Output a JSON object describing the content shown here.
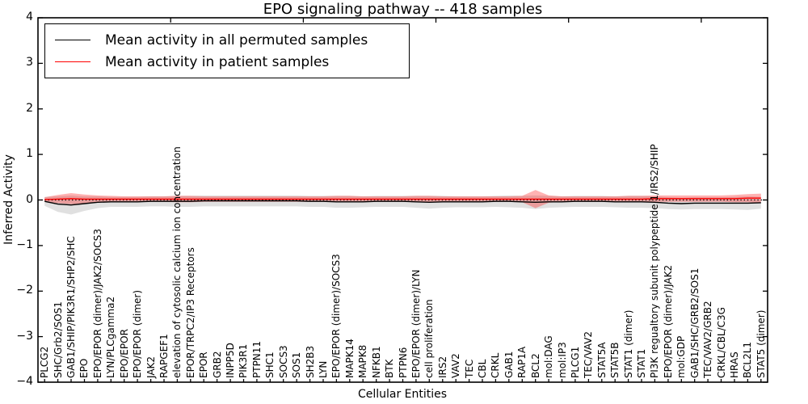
{
  "legend": {
    "items": [
      {
        "label": "Mean activity in all permuted samples",
        "color": "#000000"
      },
      {
        "label": "Mean activity in patient samples",
        "color": "#ff0000"
      }
    ]
  },
  "chart_data": {
    "type": "line",
    "title": "EPO signaling pathway -- 418 samples",
    "xlabel": "Cellular Entities",
    "ylabel": "Inferred Activity",
    "ylim": [
      -4,
      4
    ],
    "ytick_labels": [
      "4",
      "3",
      "2",
      "1",
      "0",
      "−1",
      "−2",
      "−3",
      "−4"
    ],
    "grid": false,
    "legend_position": "upper left",
    "zero_line": {
      "style": "dotted",
      "color": "#000000",
      "y": 0
    },
    "categories": [
      "PLCG2",
      "SHC/Grb2/SOS1",
      "GAB1/SHIP/PIK3R1/SHP2/SHC",
      "EPO",
      "EPO/EPOR (dimer)/JAK2/SOCS3",
      "LYN/PLCgamma2",
      "EPO/EPOR",
      "EPO/EPOR (dimer)",
      "JAK2",
      "RAPGEF1",
      "elevation of cytosolic calcium ion concentration",
      "EPOR/TRPC2/IP3 Receptors",
      "EPOR",
      "GRB2",
      "INPP5D",
      "PIK3R1",
      "PTPN11",
      "SHC1",
      "SOCS3",
      "SOS1",
      "SH2B3",
      "LYN",
      "EPO/EPOR (dimer)/SOCS3",
      "MAPK14",
      "MAPK8",
      "NFKB1",
      "BTK",
      "PTPN6",
      "EPO/EPOR (dimer)/LYN",
      "cell proliferation",
      "IRS2",
      "VAV2",
      "TEC",
      "CBL",
      "CRKL",
      "GAB1",
      "RAP1A",
      "BCL2",
      "mol:DAG",
      "mol:IP3",
      "PLCG1",
      "TEC/VAV2",
      "STAT5A",
      "STAT5B",
      "STAT1 (dimer)",
      "STAT1",
      "PI3K regualtory subunit polypeptide 1/IRS2/SHIP",
      "EPO/EPOR (dimer)/JAK2",
      "mol:GDP",
      "GAB1/SHC/GRB2/SOS1",
      "TEC/VAV2/GRB2",
      "CRKL/CBL/C3G",
      "HRAS",
      "BCL2L1",
      "STAT5 (dimer)"
    ],
    "series": [
      {
        "name": "Mean activity in all permuted samples",
        "color": "#000000",
        "band_color": "#000000",
        "band_opacity": 0.12,
        "values": [
          -0.03,
          -0.09,
          -0.11,
          -0.08,
          -0.05,
          -0.04,
          -0.04,
          -0.04,
          -0.03,
          -0.03,
          -0.03,
          -0.03,
          -0.02,
          -0.02,
          -0.02,
          -0.02,
          -0.02,
          -0.02,
          -0.02,
          -0.02,
          -0.03,
          -0.03,
          -0.04,
          -0.04,
          -0.04,
          -0.03,
          -0.03,
          -0.03,
          -0.04,
          -0.05,
          -0.04,
          -0.04,
          -0.04,
          -0.04,
          -0.03,
          -0.03,
          -0.04,
          -0.05,
          -0.04,
          -0.04,
          -0.03,
          -0.03,
          -0.03,
          -0.04,
          -0.04,
          -0.04,
          -0.05,
          -0.07,
          -0.08,
          -0.07,
          -0.07,
          -0.07,
          -0.07,
          -0.07,
          -0.06
        ],
        "std": [
          0.1,
          0.17,
          0.21,
          0.16,
          0.13,
          0.11,
          0.11,
          0.11,
          0.11,
          0.11,
          0.12,
          0.12,
          0.12,
          0.12,
          0.12,
          0.12,
          0.12,
          0.12,
          0.12,
          0.12,
          0.12,
          0.12,
          0.13,
          0.13,
          0.12,
          0.12,
          0.12,
          0.12,
          0.13,
          0.14,
          0.13,
          0.12,
          0.12,
          0.12,
          0.12,
          0.13,
          0.13,
          0.15,
          0.13,
          0.12,
          0.12,
          0.12,
          0.12,
          0.12,
          0.13,
          0.13,
          0.13,
          0.13,
          0.13,
          0.13,
          0.13,
          0.13,
          0.14,
          0.15,
          0.13
        ]
      },
      {
        "name": "Mean activity in patient samples",
        "color": "#ff0000",
        "band_color": "#ff0000",
        "band_opacity": 0.3,
        "values": [
          0.01,
          0.02,
          0.03,
          0.02,
          0.02,
          0.02,
          0.02,
          0.02,
          0.02,
          0.02,
          0.02,
          0.02,
          0.02,
          0.02,
          0.02,
          0.02,
          0.02,
          0.02,
          0.02,
          0.02,
          0.02,
          0.02,
          0.02,
          0.02,
          0.02,
          0.02,
          0.02,
          0.02,
          0.02,
          0.02,
          0.02,
          0.02,
          0.02,
          0.02,
          0.02,
          0.02,
          0.02,
          0.02,
          0.02,
          0.02,
          0.02,
          0.02,
          0.02,
          0.02,
          0.02,
          0.02,
          0.03,
          0.03,
          0.03,
          0.03,
          0.03,
          0.03,
          0.03,
          0.04,
          0.04
        ],
        "std": [
          0.05,
          0.09,
          0.12,
          0.1,
          0.08,
          0.07,
          0.06,
          0.06,
          0.06,
          0.06,
          0.07,
          0.07,
          0.06,
          0.06,
          0.06,
          0.06,
          0.06,
          0.06,
          0.06,
          0.06,
          0.06,
          0.06,
          0.07,
          0.07,
          0.06,
          0.06,
          0.06,
          0.06,
          0.07,
          0.07,
          0.06,
          0.06,
          0.06,
          0.06,
          0.06,
          0.06,
          0.07,
          0.2,
          0.08,
          0.06,
          0.06,
          0.06,
          0.06,
          0.06,
          0.07,
          0.07,
          0.07,
          0.07,
          0.07,
          0.07,
          0.07,
          0.07,
          0.08,
          0.09,
          0.1
        ]
      }
    ]
  }
}
